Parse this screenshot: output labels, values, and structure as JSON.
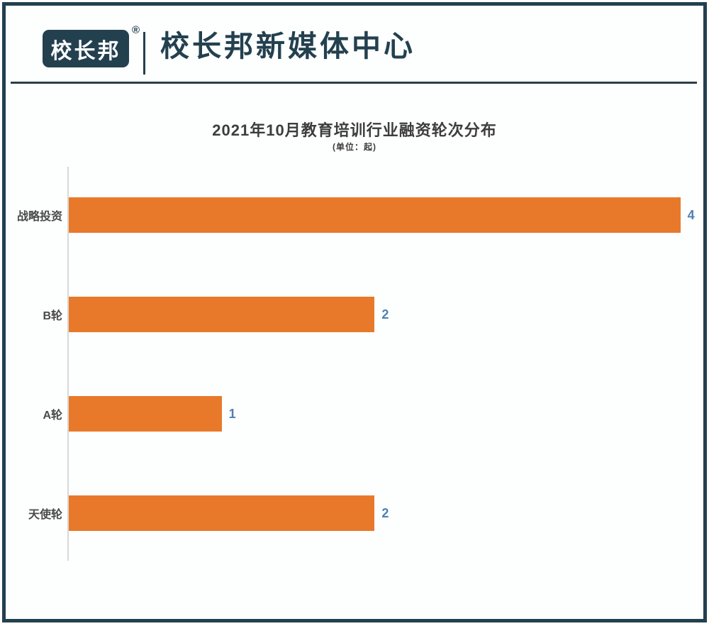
{
  "page": {
    "background": "#fdfefe",
    "border_color": "#23404F"
  },
  "header": {
    "logo_text": "校长邦",
    "registered_mark": "®",
    "brand_title": "校长邦新媒体中心"
  },
  "chart": {
    "title": "2021年10月教育培训行业融资轮次分布",
    "unit_label": "(单位：起)"
  },
  "chart_data": {
    "type": "bar",
    "orientation": "horizontal",
    "title": "2021年10月教育培训行业融资轮次分布",
    "unit": "起",
    "categories": [
      "战略投资",
      "B轮",
      "A轮",
      "天使轮"
    ],
    "values": [
      4,
      2,
      1,
      2
    ],
    "xlabel": "",
    "ylabel": "",
    "xlim": [
      0,
      4.15
    ],
    "grid": false,
    "legend": false,
    "bar_color": "#E8792B",
    "value_label_color": "#4E80B3",
    "category_label_color": "#4A4A4A",
    "axis_line_color": "#D8D8D8"
  }
}
